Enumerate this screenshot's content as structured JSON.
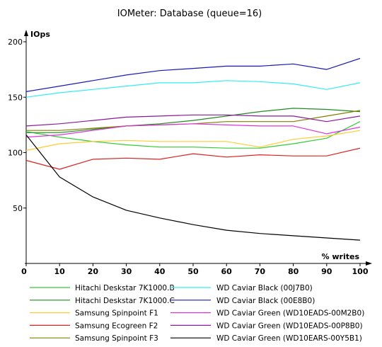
{
  "chart_data": {
    "type": "line",
    "title": "IOMeter: Database (queue=16)",
    "ylabel": "IOps",
    "xlabel": "% writes",
    "x": [
      0,
      10,
      20,
      30,
      40,
      50,
      60,
      70,
      80,
      90,
      100
    ],
    "xlim": [
      0,
      100
    ],
    "ylim": [
      0,
      200
    ],
    "yticks": [
      50,
      100,
      150,
      200
    ],
    "xticks": [
      0,
      10,
      20,
      30,
      40,
      50,
      60,
      70,
      80,
      90,
      100
    ],
    "grid": false,
    "legend_position": "bottom",
    "series": [
      {
        "name": "Hitachi Deskstar 7K1000.B",
        "color": "#33cc33",
        "values": [
          119,
          114,
          110,
          107,
          105,
          105,
          104,
          104,
          108,
          113,
          128
        ]
      },
      {
        "name": "Hitachi Deskstar 7K1000.C",
        "color": "#228b22",
        "values": [
          118,
          118,
          121,
          124,
          126,
          129,
          133,
          137,
          140,
          139,
          137
        ]
      },
      {
        "name": "Samsung Spinpoint F1",
        "color": "#ffcc33",
        "values": [
          102,
          108,
          110,
          111,
          110,
          110,
          110,
          105,
          112,
          115,
          120
        ]
      },
      {
        "name": "Samsung Ecogreen F2",
        "color": "#dd2222",
        "values": [
          93,
          85,
          94,
          95,
          94,
          99,
          96,
          98,
          97,
          97,
          104
        ]
      },
      {
        "name": "Samsung Spinpoint F3",
        "color": "#808000",
        "values": [
          120,
          120,
          122,
          124,
          125,
          126,
          128,
          128,
          128,
          133,
          138
        ]
      },
      {
        "name": "WD Caviar Black (00J7B0)",
        "color": "#33eeee",
        "values": [
          150,
          154,
          157,
          160,
          163,
          163,
          165,
          164,
          162,
          157,
          163
        ]
      },
      {
        "name": "WD Caviar Black (00E8B0)",
        "color": "#1a1ab8",
        "values": [
          155,
          160,
          165,
          170,
          174,
          176,
          178,
          178,
          180,
          175,
          185
        ]
      },
      {
        "name": "WD Caviar Green (WD10EADS-00M2B0)",
        "color": "#dd33dd",
        "values": [
          114,
          116,
          120,
          124,
          125,
          126,
          125,
          124,
          124,
          117,
          123
        ]
      },
      {
        "name": "WD Caviar Green (WD10EADS-00P8B0)",
        "color": "#8a1a9a",
        "values": [
          124,
          126,
          129,
          132,
          133,
          134,
          134,
          133,
          133,
          128,
          133
        ]
      },
      {
        "name": "WD Caviar Green (WD10EARS-00Y5B1)",
        "color": "#000000",
        "values": [
          116,
          78,
          60,
          48,
          41,
          35,
          30,
          27,
          25,
          23,
          21
        ]
      }
    ]
  }
}
